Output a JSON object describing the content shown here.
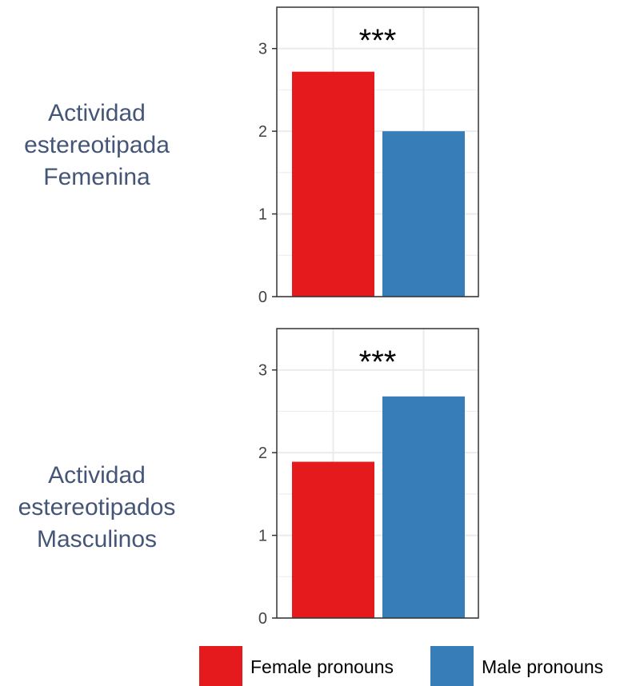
{
  "colors": {
    "female": "#e41a1c",
    "male": "#377eb8",
    "grid": "#ebebeb",
    "panel_border": "#333333",
    "row_label": "#445577"
  },
  "legend": {
    "position": "bottom",
    "items": [
      {
        "label": "Female pronouns",
        "color": "#e41a1c"
      },
      {
        "label": "Male pronouns",
        "color": "#377eb8"
      }
    ]
  },
  "chart_data": [
    {
      "type": "bar",
      "row_label": "Actividad\nestereotipada\nFemenina",
      "categories": [
        "Female pronouns",
        "Male pronouns"
      ],
      "values": [
        2.72,
        2.0
      ],
      "annotation": "***",
      "ylim": [
        0,
        3.5
      ],
      "yticks": [
        0,
        1,
        2,
        3
      ],
      "grid": true
    },
    {
      "type": "bar",
      "row_label": "Actividad\nestereotipados\nMasculinos",
      "categories": [
        "Female pronouns",
        "Male pronouns"
      ],
      "values": [
        1.89,
        2.68
      ],
      "annotation": "***",
      "ylim": [
        0,
        3.5
      ],
      "yticks": [
        0,
        1,
        2,
        3
      ],
      "grid": true
    }
  ]
}
